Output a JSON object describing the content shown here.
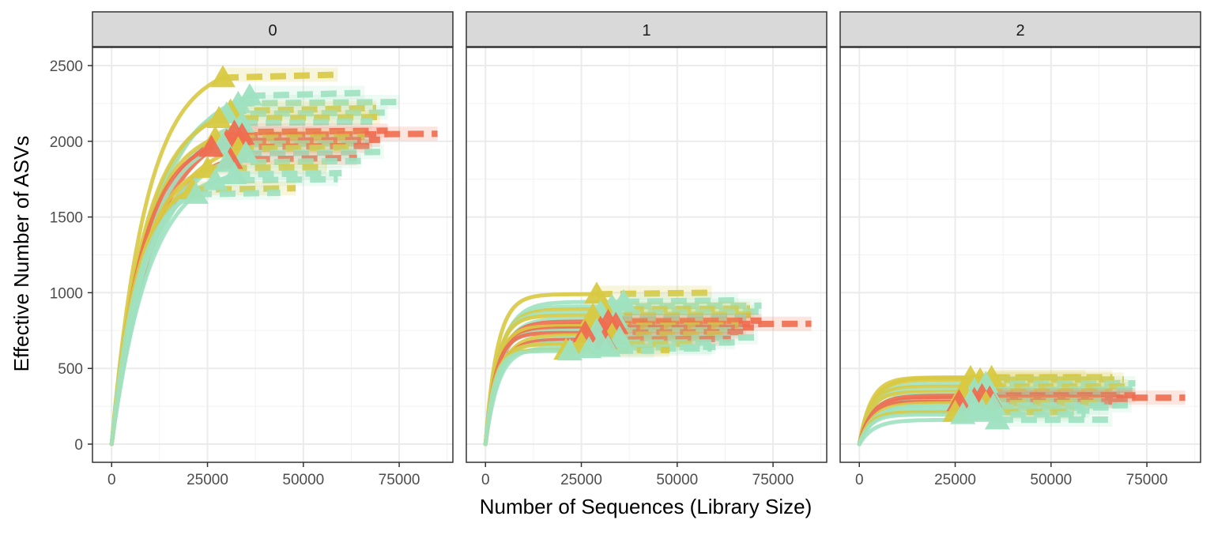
{
  "chart_data": {
    "type": "line",
    "facet_variable_values": [
      "0",
      "1",
      "2"
    ],
    "xlabel": "Number of Sequences (Library Size)",
    "ylabel": "Effective Number of ASVs",
    "xlim": [
      -5000,
      89000
    ],
    "ylim": [
      -120,
      2620
    ],
    "x_ticks": [
      0,
      25000,
      50000,
      75000
    ],
    "x_tick_labels": [
      "0",
      "25000",
      "50000",
      "75000"
    ],
    "y_ticks": [
      0,
      500,
      1000,
      1500,
      2000,
      2500
    ],
    "y_tick_labels": [
      "0",
      "500",
      "1000",
      "1500",
      "2000",
      "2500"
    ],
    "grid": true,
    "legend": "none",
    "colors": {
      "teal": "#9ee2c1",
      "yellow": "#d8c942",
      "red": "#ef6d50",
      "strip_fill": "#d9d9d9",
      "grid": "#ebebeb"
    },
    "notes": "Rarefaction curves: solid = interpolated, dashed = extrapolated, triangle = observed sample size. Values estimated from the figure.",
    "panels": [
      {
        "facet": "0",
        "curves": [
          {
            "color": "yellow",
            "n_obs": 29000,
            "y_obs": 2420,
            "y_final": 2440,
            "n_end": 59000
          },
          {
            "color": "teal",
            "n_obs": 36000,
            "y_obs": 2300,
            "y_final": 2320,
            "n_end": 66000
          },
          {
            "color": "teal",
            "n_obs": 33000,
            "y_obs": 2250,
            "y_final": 2260,
            "n_end": 75000
          },
          {
            "color": "yellow",
            "n_obs": 31000,
            "y_obs": 2200,
            "y_final": 2220,
            "n_end": 69000
          },
          {
            "color": "teal",
            "n_obs": 30000,
            "y_obs": 2180,
            "y_final": 2190,
            "n_end": 72000
          },
          {
            "color": "yellow",
            "n_obs": 28000,
            "y_obs": 2150,
            "y_final": 2160,
            "n_end": 70000
          },
          {
            "color": "teal",
            "n_obs": 34000,
            "y_obs": 2120,
            "y_final": 2130,
            "n_end": 68000
          },
          {
            "color": "red",
            "n_obs": 32000,
            "y_obs": 2060,
            "y_final": 2070,
            "n_end": 72000
          },
          {
            "color": "red",
            "n_obs": 34000,
            "y_obs": 2040,
            "y_final": 2050,
            "n_end": 85000
          },
          {
            "color": "yellow",
            "n_obs": 27000,
            "y_obs": 2020,
            "y_final": 2030,
            "n_end": 66000
          },
          {
            "color": "red",
            "n_obs": 30000,
            "y_obs": 2000,
            "y_final": 2010,
            "n_end": 70000
          },
          {
            "color": "teal",
            "n_obs": 29000,
            "y_obs": 1980,
            "y_final": 1990,
            "n_end": 67000
          },
          {
            "color": "red",
            "n_obs": 26000,
            "y_obs": 1960,
            "y_final": 1970,
            "n_end": 68000
          },
          {
            "color": "yellow",
            "n_obs": 33000,
            "y_obs": 1950,
            "y_final": 1960,
            "n_end": 63000
          },
          {
            "color": "teal",
            "n_obs": 35000,
            "y_obs": 1920,
            "y_final": 1930,
            "n_end": 71000
          },
          {
            "color": "red",
            "n_obs": 31000,
            "y_obs": 1880,
            "y_final": 1890,
            "n_end": 64000
          },
          {
            "color": "teal",
            "n_obs": 30000,
            "y_obs": 1860,
            "y_final": 1870,
            "n_end": 65000
          },
          {
            "color": "yellow",
            "n_obs": 25000,
            "y_obs": 1820,
            "y_final": 1830,
            "n_end": 56000
          },
          {
            "color": "teal",
            "n_obs": 32000,
            "y_obs": 1780,
            "y_final": 1790,
            "n_end": 60000
          },
          {
            "color": "teal",
            "n_obs": 27000,
            "y_obs": 1740,
            "y_final": 1750,
            "n_end": 59000
          },
          {
            "color": "yellow",
            "n_obs": 21000,
            "y_obs": 1680,
            "y_final": 1690,
            "n_end": 48000
          },
          {
            "color": "teal",
            "n_obs": 22000,
            "y_obs": 1650,
            "y_final": 1660,
            "n_end": 44000
          }
        ]
      },
      {
        "facet": "1",
        "curves": [
          {
            "color": "yellow",
            "n_obs": 29000,
            "y_obs": 990,
            "y_final": 1000,
            "n_end": 59000
          },
          {
            "color": "teal",
            "n_obs": 36000,
            "y_obs": 940,
            "y_final": 950,
            "n_end": 66000
          },
          {
            "color": "teal",
            "n_obs": 33000,
            "y_obs": 910,
            "y_final": 915,
            "n_end": 72000
          },
          {
            "color": "yellow",
            "n_obs": 31000,
            "y_obs": 890,
            "y_final": 895,
            "n_end": 69000
          },
          {
            "color": "teal",
            "n_obs": 30000,
            "y_obs": 870,
            "y_final": 875,
            "n_end": 72000
          },
          {
            "color": "yellow",
            "n_obs": 28000,
            "y_obs": 850,
            "y_final": 855,
            "n_end": 70000
          },
          {
            "color": "teal",
            "n_obs": 34000,
            "y_obs": 830,
            "y_final": 835,
            "n_end": 68000
          },
          {
            "color": "red",
            "n_obs": 32000,
            "y_obs": 810,
            "y_final": 815,
            "n_end": 72000
          },
          {
            "color": "red",
            "n_obs": 34000,
            "y_obs": 790,
            "y_final": 795,
            "n_end": 85000
          },
          {
            "color": "yellow",
            "n_obs": 27000,
            "y_obs": 780,
            "y_final": 785,
            "n_end": 66000
          },
          {
            "color": "red",
            "n_obs": 30000,
            "y_obs": 765,
            "y_final": 770,
            "n_end": 70000
          },
          {
            "color": "teal",
            "n_obs": 29000,
            "y_obs": 750,
            "y_final": 752,
            "n_end": 67000
          },
          {
            "color": "red",
            "n_obs": 26000,
            "y_obs": 735,
            "y_final": 740,
            "n_end": 68000
          },
          {
            "color": "yellow",
            "n_obs": 33000,
            "y_obs": 720,
            "y_final": 725,
            "n_end": 63000
          },
          {
            "color": "teal",
            "n_obs": 35000,
            "y_obs": 700,
            "y_final": 705,
            "n_end": 71000
          },
          {
            "color": "red",
            "n_obs": 31000,
            "y_obs": 690,
            "y_final": 695,
            "n_end": 64000
          },
          {
            "color": "teal",
            "n_obs": 30000,
            "y_obs": 670,
            "y_final": 672,
            "n_end": 65000
          },
          {
            "color": "yellow",
            "n_obs": 25000,
            "y_obs": 660,
            "y_final": 662,
            "n_end": 56000
          },
          {
            "color": "teal",
            "n_obs": 32000,
            "y_obs": 640,
            "y_final": 642,
            "n_end": 60000
          },
          {
            "color": "teal",
            "n_obs": 27000,
            "y_obs": 630,
            "y_final": 632,
            "n_end": 59000
          },
          {
            "color": "yellow",
            "n_obs": 21000,
            "y_obs": 620,
            "y_final": 622,
            "n_end": 48000
          },
          {
            "color": "teal",
            "n_obs": 22000,
            "y_obs": 615,
            "y_final": 617,
            "n_end": 44000
          }
        ]
      },
      {
        "facet": "2",
        "curves": [
          {
            "color": "yellow",
            "n_obs": 29000,
            "y_obs": 440,
            "y_final": 442,
            "n_end": 59000
          },
          {
            "color": "yellow",
            "n_obs": 34500,
            "y_obs": 440,
            "y_final": 442,
            "n_end": 66000
          },
          {
            "color": "yellow",
            "n_obs": 31500,
            "y_obs": 425,
            "y_final": 427,
            "n_end": 69000
          },
          {
            "color": "teal",
            "n_obs": 33000,
            "y_obs": 400,
            "y_final": 402,
            "n_end": 72000
          },
          {
            "color": "yellow",
            "n_obs": 28000,
            "y_obs": 380,
            "y_final": 382,
            "n_end": 70000
          },
          {
            "color": "teal",
            "n_obs": 30000,
            "y_obs": 360,
            "y_final": 362,
            "n_end": 72000
          },
          {
            "color": "yellow",
            "n_obs": 27000,
            "y_obs": 345,
            "y_final": 347,
            "n_end": 66000
          },
          {
            "color": "teal",
            "n_obs": 34000,
            "y_obs": 330,
            "y_final": 332,
            "n_end": 68000
          },
          {
            "color": "red",
            "n_obs": 32000,
            "y_obs": 320,
            "y_final": 322,
            "n_end": 72000
          },
          {
            "color": "red",
            "n_obs": 34000,
            "y_obs": 305,
            "y_final": 307,
            "n_end": 85000
          },
          {
            "color": "red",
            "n_obs": 30000,
            "y_obs": 295,
            "y_final": 297,
            "n_end": 70000
          },
          {
            "color": "teal",
            "n_obs": 29000,
            "y_obs": 285,
            "y_final": 287,
            "n_end": 67000
          },
          {
            "color": "red",
            "n_obs": 26000,
            "y_obs": 280,
            "y_final": 282,
            "n_end": 68000
          },
          {
            "color": "yellow",
            "n_obs": 33000,
            "y_obs": 270,
            "y_final": 272,
            "n_end": 63000
          },
          {
            "color": "teal",
            "n_obs": 35000,
            "y_obs": 255,
            "y_final": 257,
            "n_end": 71000
          },
          {
            "color": "teal",
            "n_obs": 30000,
            "y_obs": 240,
            "y_final": 242,
            "n_end": 65000
          },
          {
            "color": "teal",
            "n_obs": 32000,
            "y_obs": 220,
            "y_final": 222,
            "n_end": 60000
          },
          {
            "color": "yellow",
            "n_obs": 25000,
            "y_obs": 210,
            "y_final": 212,
            "n_end": 56000
          },
          {
            "color": "teal",
            "n_obs": 27000,
            "y_obs": 195,
            "y_final": 197,
            "n_end": 59000
          },
          {
            "color": "teal",
            "n_obs": 36000,
            "y_obs": 160,
            "y_final": 162,
            "n_end": 66000
          }
        ]
      }
    ]
  }
}
